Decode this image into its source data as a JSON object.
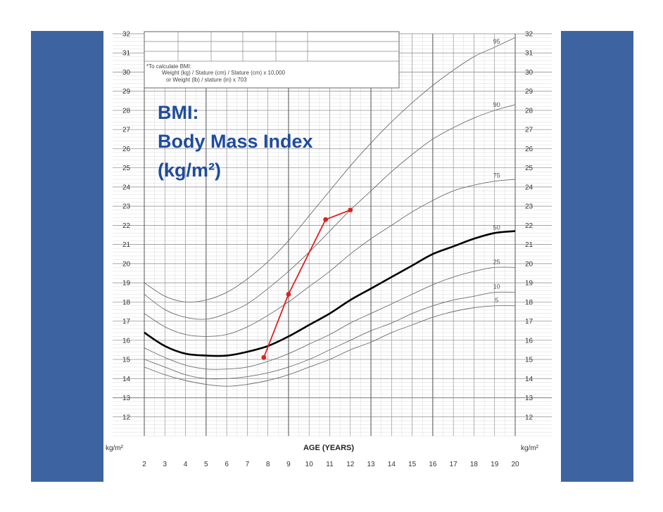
{
  "colors": {
    "band": "#3d64a0",
    "title": "#1f4c9e",
    "patient": "#e02020",
    "grid_major": "#8a8a8a",
    "grid_minor": "#d2d2d2",
    "curve": "#6d6d6d"
  },
  "note": {
    "lines": [
      "*To calculate BMI:",
      "Weight (kg) / Stature (cm) / Stature (cm) x 10,000",
      "or  Weight (lb) / stature (in) x 703"
    ]
  },
  "chart_data": {
    "type": "line",
    "title_lines": [
      "BMI:",
      "Body Mass Index",
      "(kg/m²)"
    ],
    "xlabel": "AGE (YEARS)",
    "ylabel_left": "kg/m²",
    "ylabel_right": "kg/m²",
    "xlim": [
      2,
      20
    ],
    "ylim": [
      11,
      32
    ],
    "x_ticks": [
      "2",
      "3",
      "4",
      "5",
      "6",
      "7",
      "8",
      "9",
      "10",
      "11",
      "12",
      "13",
      "14",
      "15",
      "16",
      "17",
      "18",
      "19",
      "20"
    ],
    "y_ticks": [
      "12",
      "13",
      "14",
      "15",
      "16",
      "17",
      "18",
      "19",
      "20",
      "21",
      "22",
      "23",
      "24",
      "25",
      "26",
      "27",
      "28",
      "29",
      "30",
      "31",
      "32"
    ],
    "x": [
      2,
      3,
      4,
      5,
      6,
      7,
      8,
      9,
      10,
      11,
      12,
      13,
      14,
      15,
      16,
      17,
      18,
      19,
      20
    ],
    "series": [
      {
        "name": "95",
        "label": "95",
        "bold": false,
        "values": [
          19.0,
          18.3,
          18.0,
          18.1,
          18.5,
          19.2,
          20.1,
          21.2,
          22.5,
          23.8,
          25.1,
          26.3,
          27.4,
          28.4,
          29.3,
          30.1,
          30.8,
          31.3,
          31.8
        ]
      },
      {
        "name": "90",
        "label": "90",
        "bold": false,
        "values": [
          18.4,
          17.6,
          17.2,
          17.1,
          17.4,
          17.9,
          18.7,
          19.6,
          20.6,
          21.7,
          22.8,
          23.8,
          24.8,
          25.7,
          26.5,
          27.1,
          27.6,
          28.0,
          28.3
        ]
      },
      {
        "name": "75",
        "label": "75",
        "bold": false,
        "values": [
          17.4,
          16.7,
          16.3,
          16.2,
          16.3,
          16.7,
          17.3,
          18.0,
          18.8,
          19.6,
          20.5,
          21.3,
          22.0,
          22.7,
          23.3,
          23.8,
          24.1,
          24.3,
          24.4
        ]
      },
      {
        "name": "50",
        "label": "50",
        "bold": true,
        "values": [
          16.4,
          15.7,
          15.3,
          15.2,
          15.2,
          15.4,
          15.7,
          16.2,
          16.8,
          17.4,
          18.1,
          18.7,
          19.3,
          19.9,
          20.5,
          20.9,
          21.3,
          21.6,
          21.7
        ]
      },
      {
        "name": "25",
        "label": "25",
        "bold": false,
        "values": [
          15.6,
          15.1,
          14.7,
          14.5,
          14.5,
          14.6,
          14.9,
          15.3,
          15.8,
          16.3,
          16.9,
          17.4,
          17.9,
          18.4,
          18.9,
          19.3,
          19.6,
          19.8,
          19.8
        ]
      },
      {
        "name": "10",
        "label": "10",
        "bold": false,
        "values": [
          15.0,
          14.6,
          14.2,
          14.0,
          14.0,
          14.1,
          14.3,
          14.6,
          15.0,
          15.5,
          16.0,
          16.5,
          16.9,
          17.4,
          17.8,
          18.1,
          18.3,
          18.5,
          18.5
        ]
      },
      {
        "name": "5",
        "label": "5",
        "bold": false,
        "values": [
          14.6,
          14.2,
          13.9,
          13.7,
          13.6,
          13.7,
          13.9,
          14.2,
          14.6,
          15.0,
          15.5,
          15.9,
          16.4,
          16.8,
          17.2,
          17.5,
          17.7,
          17.8,
          17.8
        ]
      }
    ],
    "patient": {
      "name": "patient",
      "points": [
        {
          "x": 7.8,
          "y": 15.1
        },
        {
          "x": 9.0,
          "y": 18.4
        },
        {
          "x": 10.8,
          "y": 22.3
        },
        {
          "x": 12.0,
          "y": 22.8
        }
      ]
    }
  }
}
